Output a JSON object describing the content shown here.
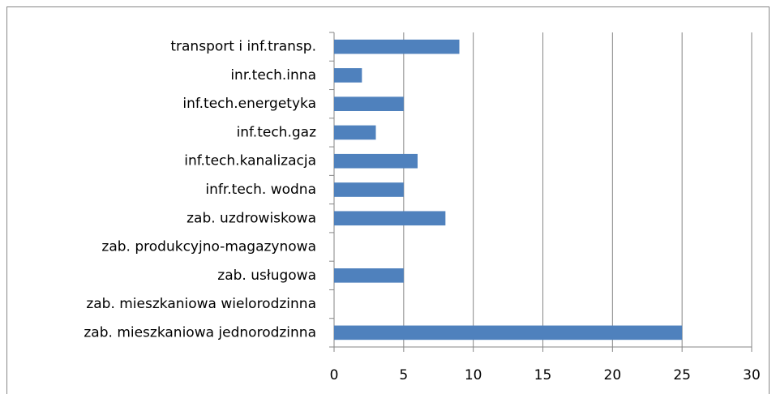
{
  "chart_data": {
    "type": "bar",
    "orientation": "horizontal",
    "categories": [
      "transport i inf.transp.",
      "inr.tech.inna",
      "inf.tech.energetyka",
      "inf.tech.gaz",
      "inf.tech.kanalizacja",
      "infr.tech. wodna",
      "zab. uzdrowiskowa",
      "zab. produkcyjno-magazynowa",
      "zab. usługowa",
      "zab. mieszkaniowa wielorodzinna",
      "zab. mieszkaniowa jednorodzinna"
    ],
    "values": [
      9,
      2,
      5,
      3,
      6,
      5,
      8,
      0,
      5,
      0,
      25
    ],
    "color": "#4f81bd",
    "xlim": [
      0,
      30
    ],
    "xticks": [
      0,
      5,
      10,
      15,
      20,
      25,
      30
    ],
    "grid": true
  }
}
